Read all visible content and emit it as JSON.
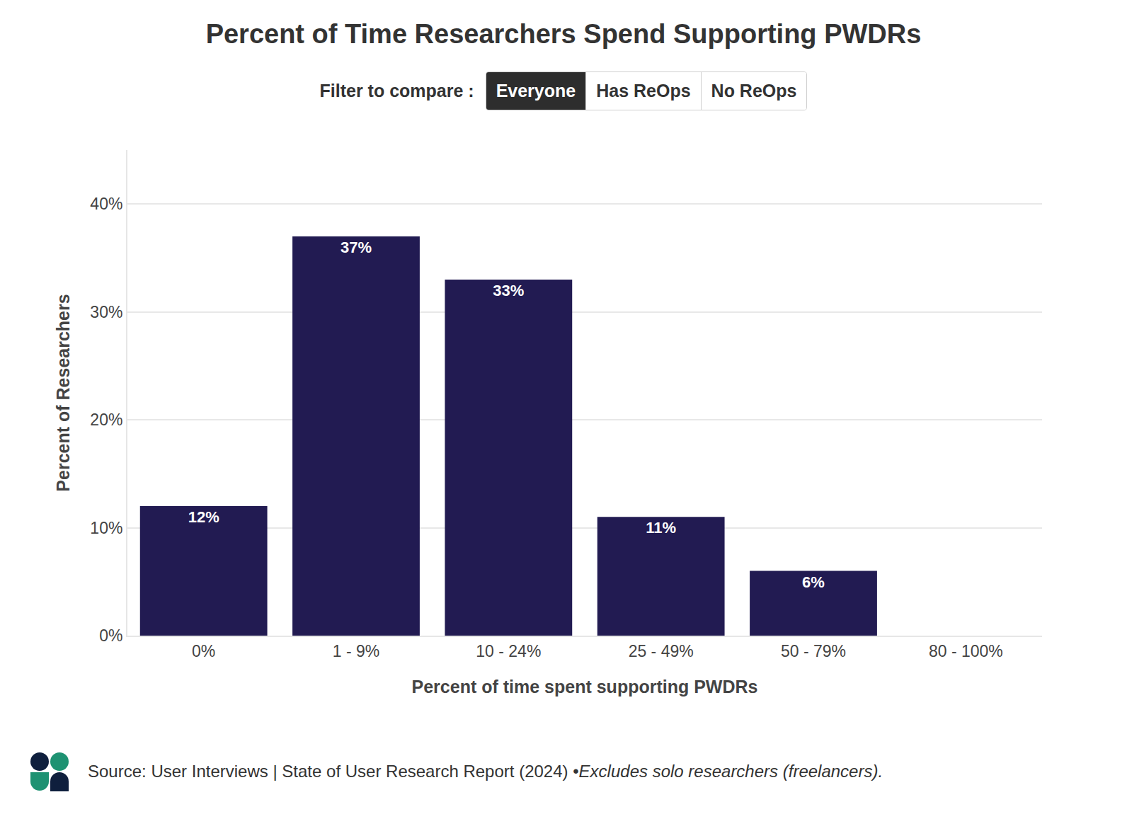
{
  "chart_data": {
    "type": "bar",
    "title": "Percent of Time Researchers Spend Supporting PWDRs",
    "filter_label": "Filter to compare :",
    "filter_options": [
      "Everyone",
      "Has ReOps",
      "No ReOps"
    ],
    "x_label": "Percent of time spent supporting PWDRs",
    "y_label": "Percent of Researchers",
    "categories": [
      "0%",
      "1 - 9%",
      "10 - 24%",
      "25 - 49%",
      "50 - 79%",
      "80 - 100%"
    ],
    "values": [
      12,
      37,
      33,
      11,
      6,
      null
    ],
    "value_labels": [
      "12%",
      "37%",
      "33%",
      "11%",
      "6%",
      null
    ],
    "data_labels": true,
    "color": "#221b52",
    "ylim": [
      0,
      45
    ],
    "yticks": [
      {
        "value": 0,
        "label": "0%"
      },
      {
        "value": 10,
        "label": "10%"
      },
      {
        "value": 20,
        "label": "20%"
      },
      {
        "value": 30,
        "label": "30%"
      },
      {
        "value": 40,
        "label": "40%"
      }
    ],
    "grid": true,
    "source": "Source: User Interviews | State of User Research Report (2024) • ",
    "note": "Excludes solo researchers (freelancers)."
  }
}
